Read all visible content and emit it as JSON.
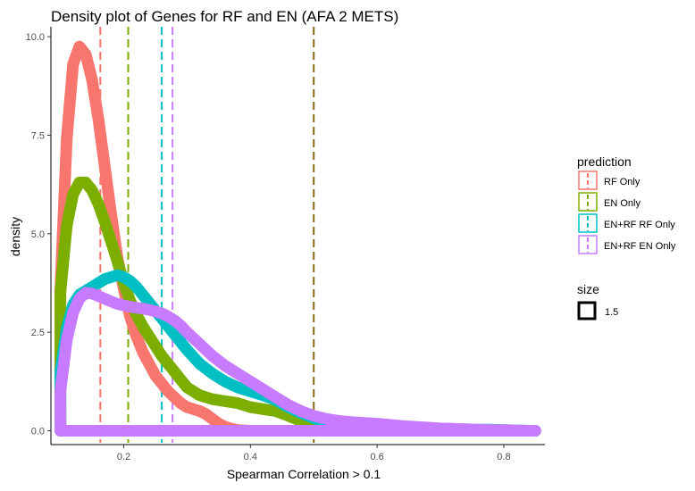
{
  "chart_data": {
    "type": "line",
    "title": "Density plot of Genes for RF and EN (AFA 2 METS)",
    "xlabel": "Spearman Correlation > 0.1",
    "ylabel": "density",
    "xlim": [
      0.085,
      0.865
    ],
    "ylim": [
      -0.35,
      10.25
    ],
    "x_ticks": [
      0.2,
      0.4,
      0.6,
      0.8
    ],
    "x_tick_labels": [
      "0.2",
      "0.4",
      "0.6",
      "0.8"
    ],
    "y_ticks": [
      0.0,
      2.5,
      5.0,
      7.5,
      10.0
    ],
    "y_tick_labels": [
      "0.0",
      "2.5",
      "5.0",
      "7.5",
      "10.0"
    ],
    "grid": false,
    "legend_placement": "right",
    "legend": {
      "title": "prediction",
      "entries": [
        "RF Only",
        "EN Only",
        "EN+RF RF Only",
        "EN+RF EN Only"
      ]
    },
    "size_legend": {
      "title": "size",
      "label": "1.5"
    },
    "series": [
      {
        "name": "RF Only",
        "color": "#F8766D",
        "mean": 0.163,
        "x": [
          0.1,
          0.11,
          0.12,
          0.13,
          0.14,
          0.15,
          0.16,
          0.17,
          0.18,
          0.19,
          0.2,
          0.21,
          0.22,
          0.23,
          0.24,
          0.25,
          0.26,
          0.27,
          0.28,
          0.29,
          0.3,
          0.31,
          0.32,
          0.33,
          0.34,
          0.35,
          0.36,
          0.37,
          0.38,
          0.39,
          0.4
        ],
        "y": [
          3.6,
          7.4,
          9.3,
          9.75,
          9.55,
          8.9,
          7.9,
          6.7,
          5.5,
          4.4,
          3.6,
          2.9,
          2.4,
          2.0,
          1.7,
          1.4,
          1.2,
          1.0,
          0.85,
          0.7,
          0.6,
          0.55,
          0.5,
          0.42,
          0.3,
          0.18,
          0.1,
          0.05,
          0.02,
          0.01,
          0.0
        ]
      },
      {
        "name": "EN Only",
        "color": "#7CAE00",
        "mean": 0.207,
        "x": [
          0.1,
          0.11,
          0.12,
          0.13,
          0.14,
          0.15,
          0.16,
          0.17,
          0.18,
          0.19,
          0.2,
          0.21,
          0.22,
          0.23,
          0.24,
          0.25,
          0.26,
          0.27,
          0.28,
          0.29,
          0.3,
          0.32,
          0.34,
          0.36,
          0.38,
          0.4,
          0.42,
          0.44,
          0.46,
          0.48,
          0.5,
          0.52,
          0.54,
          0.56,
          0.58,
          0.6,
          0.62
        ],
        "y": [
          3.5,
          5.2,
          6.0,
          6.3,
          6.3,
          6.1,
          5.75,
          5.3,
          4.8,
          4.3,
          3.75,
          3.3,
          2.95,
          2.65,
          2.4,
          2.15,
          1.9,
          1.7,
          1.5,
          1.3,
          1.1,
          0.9,
          0.8,
          0.75,
          0.7,
          0.6,
          0.55,
          0.5,
          0.38,
          0.25,
          0.15,
          0.12,
          0.1,
          0.06,
          0.03,
          0.01,
          0.0
        ]
      },
      {
        "name": "EN+RF RF Only",
        "color": "#00BFC4",
        "mean": 0.26,
        "x": [
          0.1,
          0.11,
          0.12,
          0.13,
          0.14,
          0.15,
          0.16,
          0.17,
          0.18,
          0.19,
          0.2,
          0.21,
          0.22,
          0.23,
          0.24,
          0.25,
          0.26,
          0.27,
          0.28,
          0.29,
          0.3,
          0.32,
          0.34,
          0.36,
          0.38,
          0.4,
          0.42,
          0.44,
          0.46,
          0.48,
          0.5,
          0.52,
          0.54,
          0.56,
          0.58,
          0.6,
          0.62,
          0.64,
          0.66,
          0.68,
          0.7,
          0.72,
          0.74,
          0.76,
          0.78,
          0.8,
          0.82,
          0.84,
          0.85
        ],
        "y": [
          1.5,
          2.6,
          3.2,
          3.45,
          3.55,
          3.65,
          3.75,
          3.85,
          3.9,
          3.95,
          3.9,
          3.8,
          3.65,
          3.45,
          3.25,
          3.05,
          2.85,
          2.65,
          2.45,
          2.25,
          2.05,
          1.7,
          1.45,
          1.25,
          1.1,
          1.0,
          0.9,
          0.78,
          0.6,
          0.45,
          0.32,
          0.22,
          0.15,
          0.1,
          0.07,
          0.05,
          0.04,
          0.04,
          0.03,
          0.02,
          0.02,
          0.02,
          0.02,
          0.03,
          0.03,
          0.02,
          0.01,
          0.0,
          0.0
        ]
      },
      {
        "name": "EN+RF EN Only",
        "color": "#C77CFF",
        "mean": 0.277,
        "x": [
          0.1,
          0.11,
          0.12,
          0.13,
          0.14,
          0.15,
          0.16,
          0.17,
          0.18,
          0.19,
          0.2,
          0.21,
          0.22,
          0.23,
          0.24,
          0.25,
          0.26,
          0.27,
          0.28,
          0.29,
          0.3,
          0.32,
          0.34,
          0.36,
          0.38,
          0.4,
          0.42,
          0.44,
          0.46,
          0.48,
          0.5,
          0.52,
          0.54,
          0.56,
          0.58,
          0.6,
          0.62,
          0.64,
          0.66,
          0.68,
          0.7,
          0.72,
          0.74,
          0.76,
          0.78,
          0.8,
          0.82,
          0.84,
          0.85
        ],
        "y": [
          1.0,
          2.3,
          3.0,
          3.35,
          3.5,
          3.48,
          3.42,
          3.35,
          3.28,
          3.22,
          3.18,
          3.15,
          3.12,
          3.1,
          3.07,
          3.03,
          2.98,
          2.9,
          2.8,
          2.67,
          2.5,
          2.2,
          1.9,
          1.65,
          1.45,
          1.25,
          1.05,
          0.85,
          0.65,
          0.5,
          0.38,
          0.3,
          0.25,
          0.22,
          0.2,
          0.18,
          0.15,
          0.12,
          0.1,
          0.08,
          0.06,
          0.05,
          0.04,
          0.03,
          0.02,
          0.02,
          0.01,
          0.0,
          0.0
        ]
      }
    ],
    "mean_lines": [
      {
        "series": "RF Only",
        "x": 0.163,
        "color": "#F8766D"
      },
      {
        "series": "EN Only",
        "x": 0.207,
        "color": "#7CAE00"
      },
      {
        "series": "EN+RF RF Only",
        "x": 0.26,
        "color": "#00BFC4"
      },
      {
        "series": "EN+RF EN Only",
        "x": 0.277,
        "color": "#C77CFF"
      },
      {
        "series": "",
        "x": 0.5,
        "color": "#8B6914"
      }
    ]
  }
}
